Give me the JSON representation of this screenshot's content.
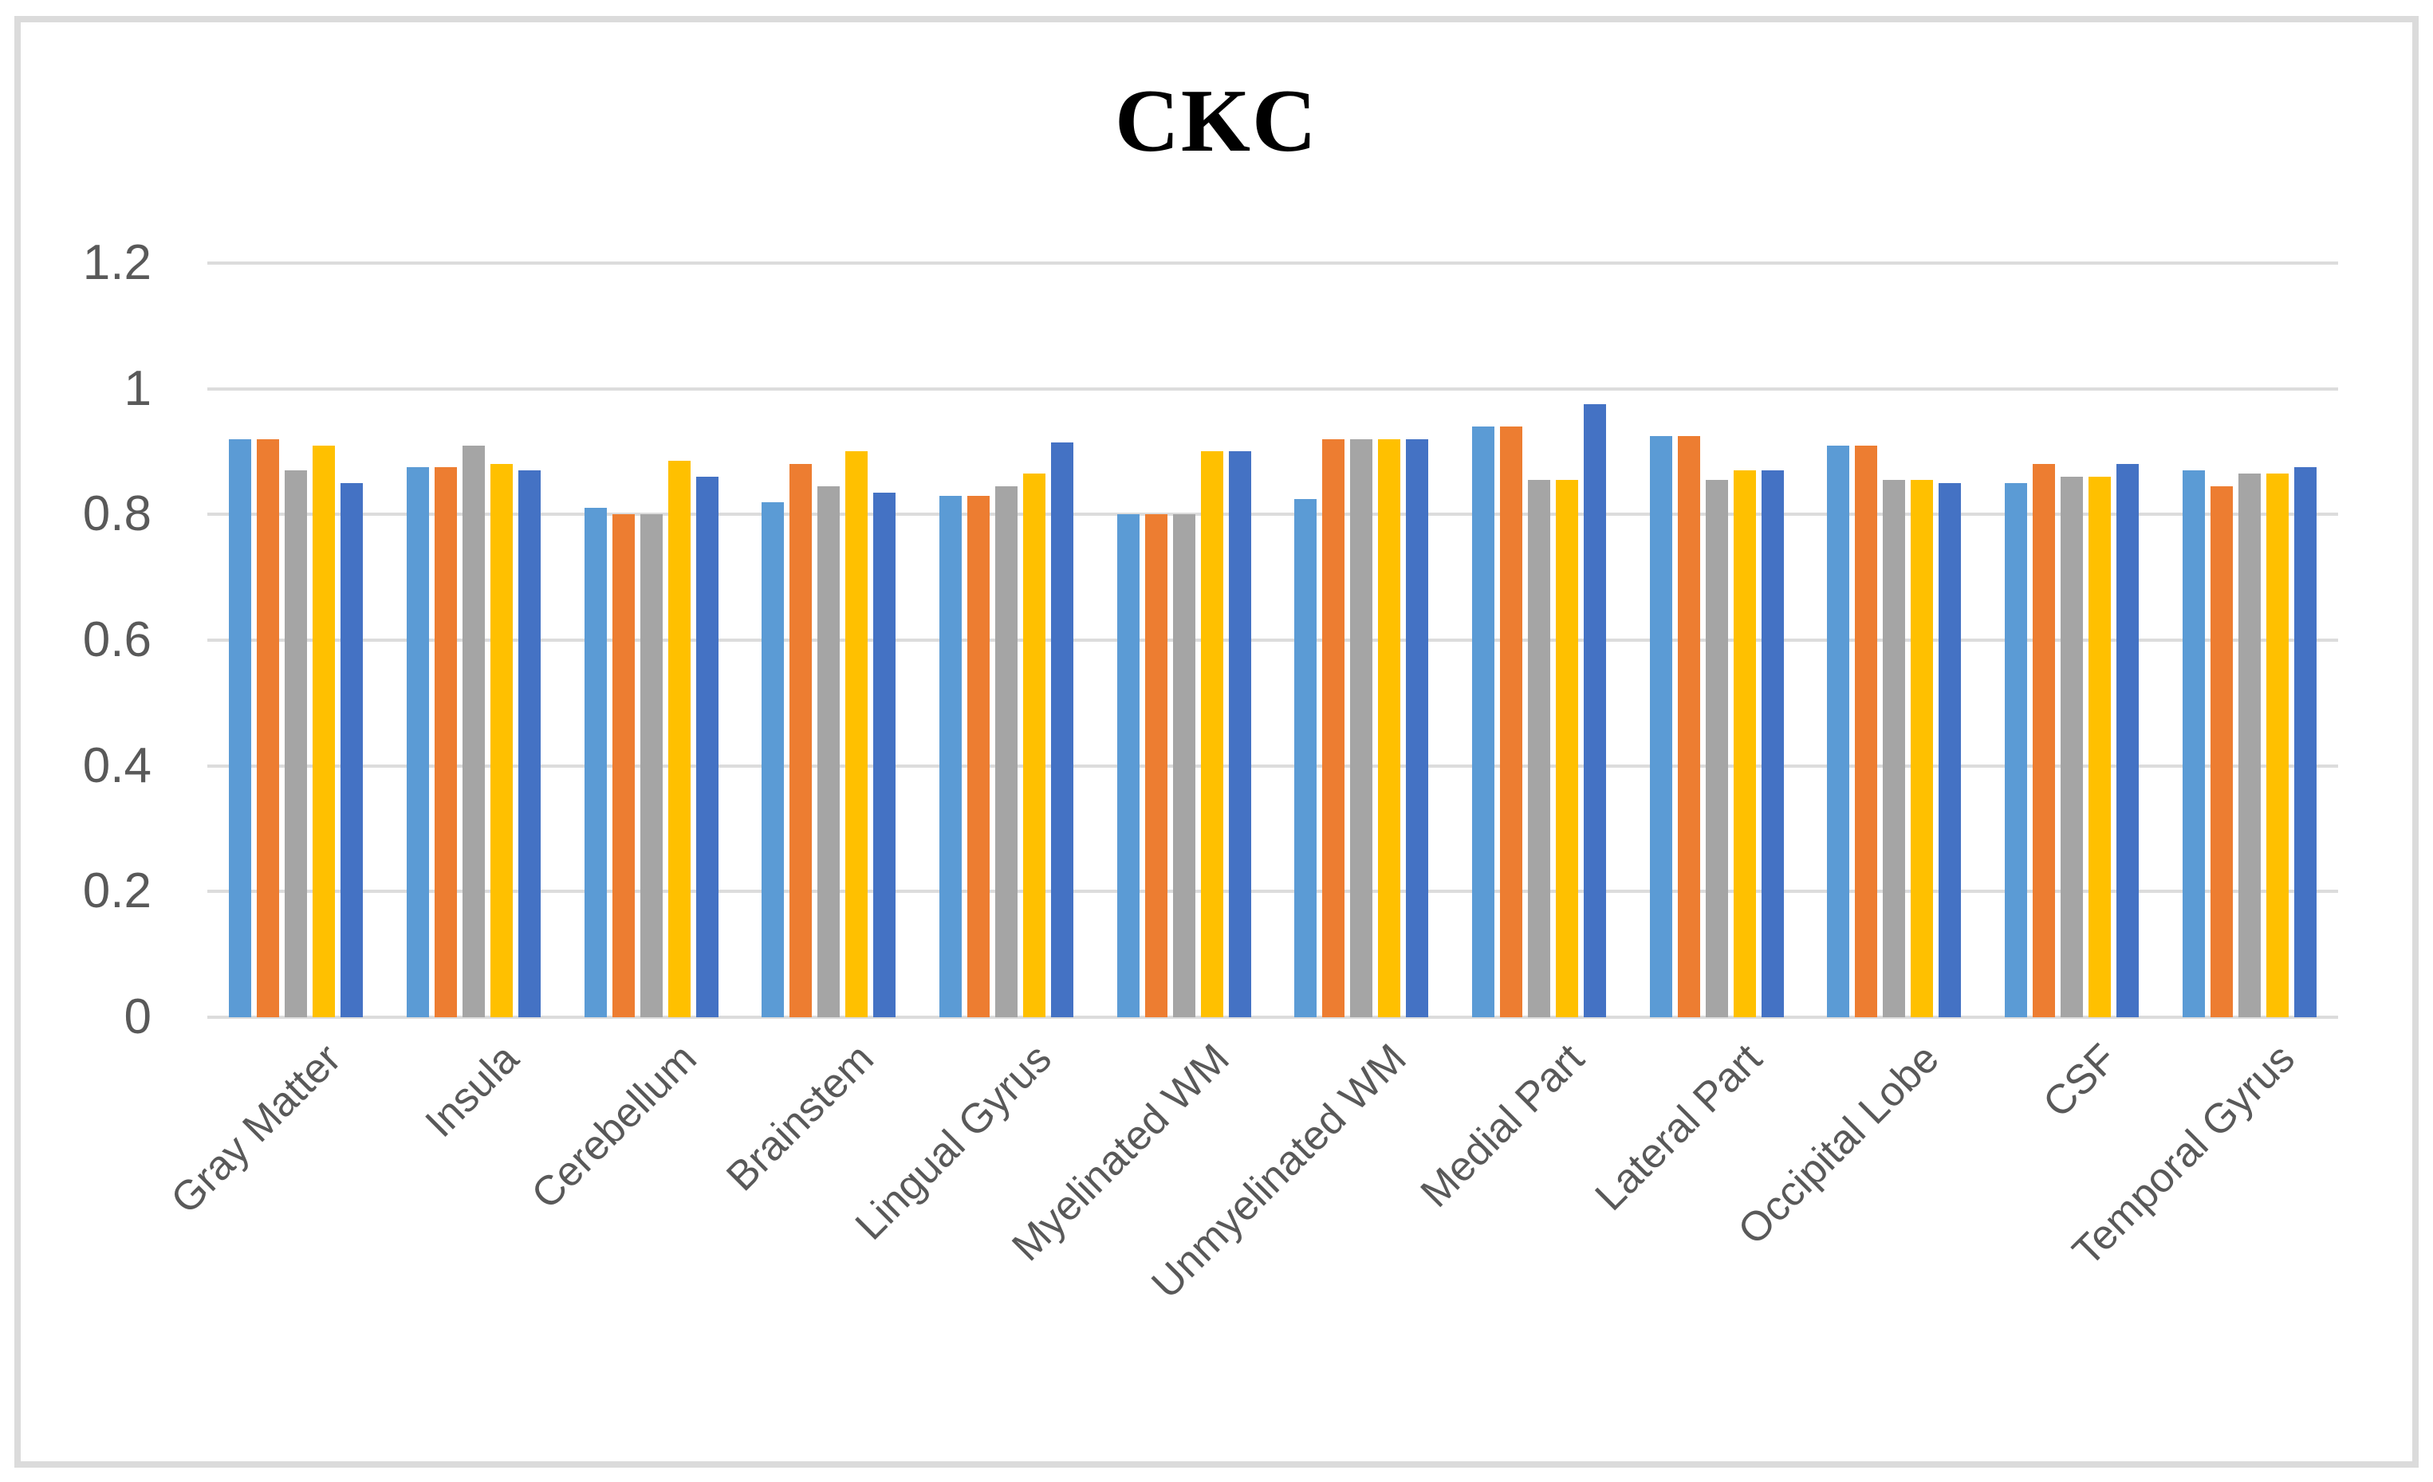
{
  "chart": {
    "title": "CKC"
  },
  "chart_data": {
    "type": "bar",
    "title": "CKC",
    "categories": [
      "Gray Matter",
      "Insula",
      "Cerebellum",
      "Brainstem",
      "Lingual Gyrus",
      "Myelinated WM",
      "Unmyelinated WM",
      "Medial Part",
      "Lateral Part",
      "Occipital Lobe",
      "CSF",
      "Temporal Gyrus"
    ],
    "series": [
      {
        "color": "#5B9BD5",
        "values": [
          0.92,
          0.875,
          0.81,
          0.82,
          0.83,
          0.8,
          0.825,
          0.94,
          0.925,
          0.91,
          0.85,
          0.87
        ]
      },
      {
        "color": "#ED7D31",
        "values": [
          0.92,
          0.875,
          0.8,
          0.88,
          0.83,
          0.8,
          0.92,
          0.94,
          0.925,
          0.91,
          0.88,
          0.845
        ]
      },
      {
        "color": "#A5A5A5",
        "values": [
          0.87,
          0.91,
          0.8,
          0.845,
          0.845,
          0.8,
          0.92,
          0.855,
          0.855,
          0.855,
          0.86,
          0.865
        ]
      },
      {
        "color": "#FFC000",
        "values": [
          0.91,
          0.88,
          0.885,
          0.9,
          0.865,
          0.9,
          0.92,
          0.855,
          0.87,
          0.855,
          0.86,
          0.865
        ]
      },
      {
        "color": "#4472C4",
        "values": [
          0.85,
          0.87,
          0.86,
          0.835,
          0.915,
          0.9,
          0.92,
          0.975,
          0.87,
          0.85,
          0.88,
          0.875
        ]
      }
    ],
    "ylim": [
      0,
      1.2
    ],
    "y_tick_values": [
      1.2,
      1.0,
      0.8,
      0.6,
      0.4,
      0.2,
      0
    ],
    "y_tick_labels": [
      "1.2",
      "1",
      "0.8",
      "0.6",
      "0.4",
      "0.2",
      "0"
    ],
    "xlabel": "",
    "ylabel": "",
    "grid": true,
    "legend": "none",
    "gridline_color": "#DCDCDC",
    "axis_label_color": "#595959",
    "title_color": "#000000",
    "frame_color": "#DBDBDB",
    "background_color": "#FFFFFF"
  }
}
